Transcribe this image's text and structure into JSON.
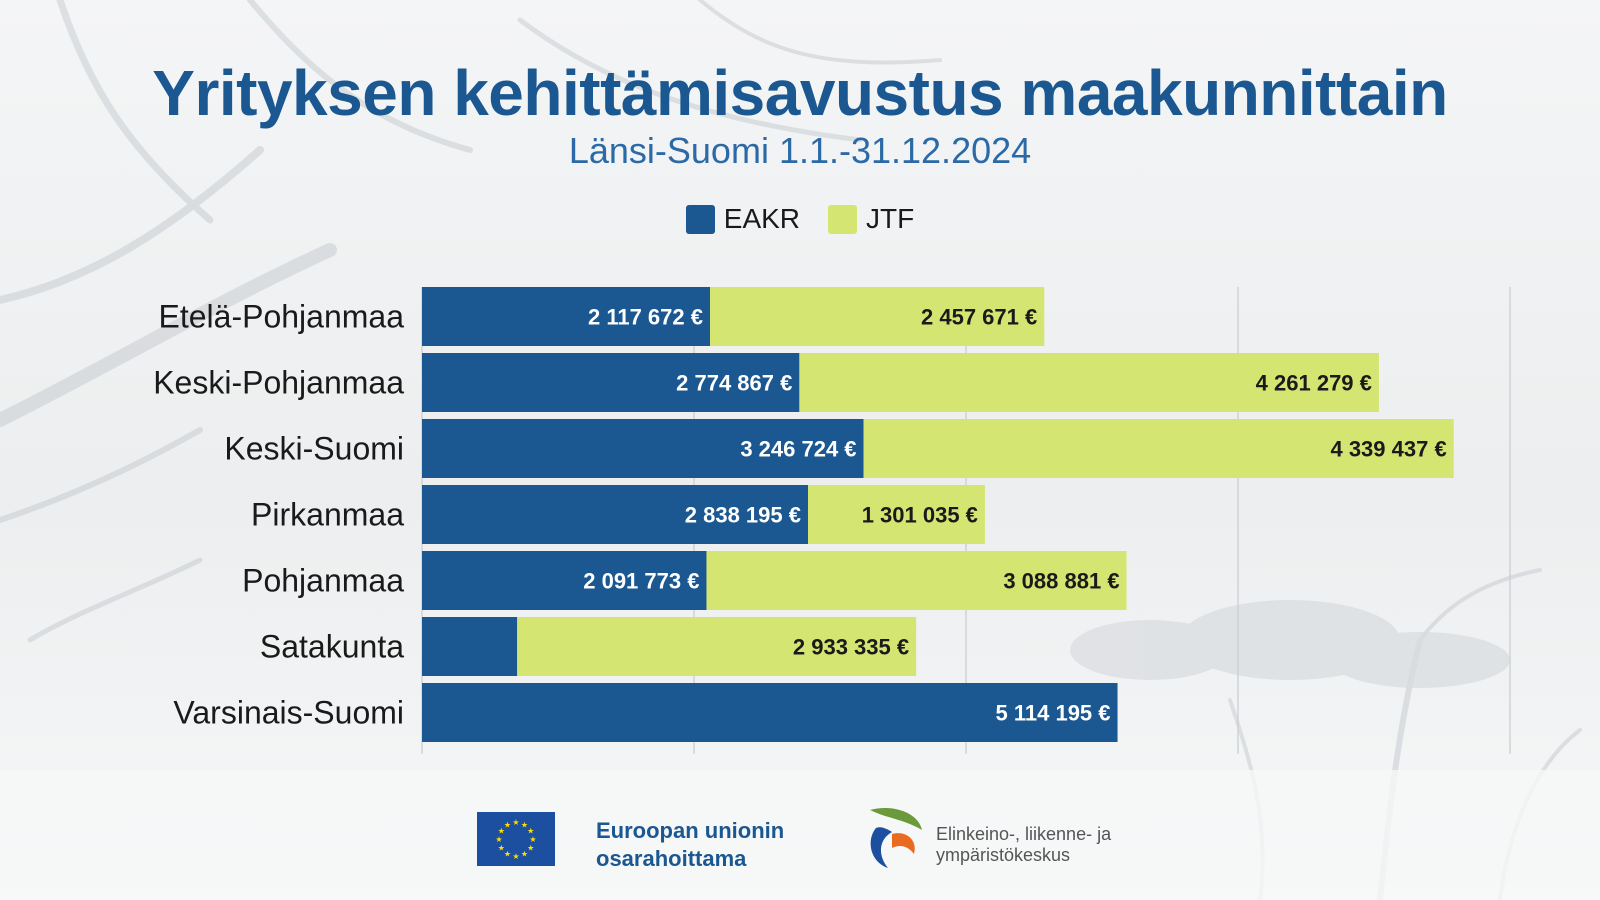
{
  "title": "Yrityksen kehittämisavustus maakunnittain",
  "subtitle": "Länsi-Suomi 1.1.-31.12.2024",
  "colors": {
    "eakr": "#1b5790",
    "jtf": "#d4e572",
    "title": "#1b5790"
  },
  "legend": [
    {
      "label": "EAKR",
      "color": "#1b5790"
    },
    {
      "label": "JTF",
      "color": "#d4e572"
    }
  ],
  "chart_data": {
    "type": "bar",
    "orientation": "horizontal",
    "stacked": true,
    "categories": [
      "Etelä-Pohjanmaa",
      "Keski-Pohjanmaa",
      "Keski-Suomi",
      "Pirkanmaa",
      "Pohjanmaa",
      "Satakunta",
      "Varsinais-Suomi"
    ],
    "series": [
      {
        "name": "EAKR",
        "color": "#1b5790",
        "values": [
          2117672,
          2774867,
          3246724,
          2838195,
          2091773,
          700000,
          5114195
        ],
        "labels": [
          "2 117 672 €",
          "2 774 867 €",
          "3 246 724 €",
          "2 838 195 €",
          "2 091 773 €",
          "",
          "5 114 195 €"
        ]
      },
      {
        "name": "JTF",
        "color": "#d4e572",
        "values": [
          2457671,
          4261279,
          4339437,
          1301035,
          3088881,
          2933335,
          0
        ],
        "labels": [
          "2 457 671 €",
          "4 261 279 €",
          "4 339 437 €",
          "1 301 035 €",
          "3 088 881 €",
          "2 933 335 €",
          ""
        ]
      }
    ],
    "xlim": [
      0,
      8000000
    ],
    "gridlines": [
      2000000,
      4000000,
      6000000,
      8000000
    ],
    "grid": true,
    "legend_position": "top-center"
  },
  "footer": {
    "eu_line1": "Euroopan unionin",
    "eu_line2": "osarahoittama",
    "ely_line1": "Elinkeino-, liikenne- ja",
    "ely_line2": "ympäristökeskus"
  }
}
